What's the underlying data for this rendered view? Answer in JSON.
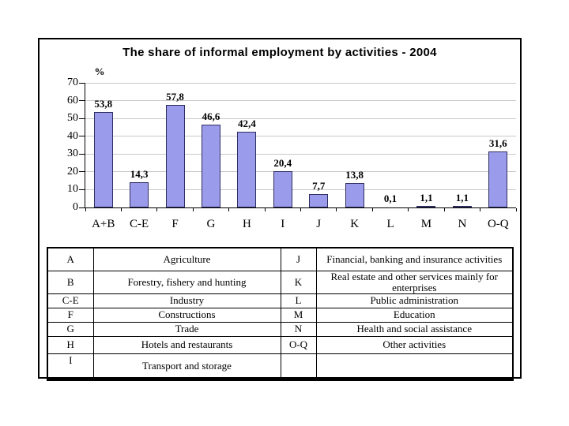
{
  "slide": {
    "title": "The share of informal employment by activities - 2004"
  },
  "chart_data": {
    "type": "bar",
    "title": "The share of informal employment by activities - 2004",
    "categories": [
      "A+B",
      "C-E",
      "F",
      "G",
      "H",
      "I",
      "J",
      "K",
      "L",
      "M",
      "N",
      "O-Q"
    ],
    "values": [
      53.8,
      14.3,
      57.8,
      46.6,
      42.4,
      20.4,
      7.7,
      13.8,
      0.1,
      1.1,
      1.1,
      31.6
    ],
    "value_labels": [
      "53,8",
      "14,3",
      "57,8",
      "46,6",
      "42,4",
      "20,4",
      "7,7",
      "13,8",
      "0,1",
      "1,1",
      "1,1",
      "31,6"
    ],
    "xlabel": "",
    "ylabel": "%",
    "ylim": [
      0,
      70
    ],
    "y_ticks": [
      0,
      10,
      20,
      30,
      40,
      50,
      60,
      70
    ],
    "grid": true,
    "legend_position": "none",
    "colors": {
      "bar_fill": "#9b9beb",
      "bar_border": "#2e2e60",
      "gridline": "#c8c8c8",
      "axis": "#000000"
    }
  },
  "legend_table": {
    "rows": [
      {
        "code_left": "A",
        "activity_left": "Agriculture",
        "code_right": "J",
        "activity_right": "Financial, banking and insurance activities"
      },
      {
        "code_left": "B",
        "activity_left": "Forestry, fishery and hunting",
        "code_right": "K",
        "activity_right": "Real estate and other services mainly for enterprises"
      },
      {
        "code_left": "C-E",
        "activity_left": "Industry",
        "code_right": "L",
        "activity_right": "Public administration"
      },
      {
        "code_left": "F",
        "activity_left": "Constructions",
        "code_right": "M",
        "activity_right": "Education"
      },
      {
        "code_left": "G",
        "activity_left": "Trade",
        "code_right": "N",
        "activity_right": "Health and social assistance"
      },
      {
        "code_left": "H",
        "activity_left": "Hotels and restaurants",
        "code_right": "O-Q",
        "activity_right": "Other activities"
      },
      {
        "code_left": "I",
        "activity_left": "Transport and storage",
        "code_right": "",
        "activity_right": ""
      }
    ]
  }
}
